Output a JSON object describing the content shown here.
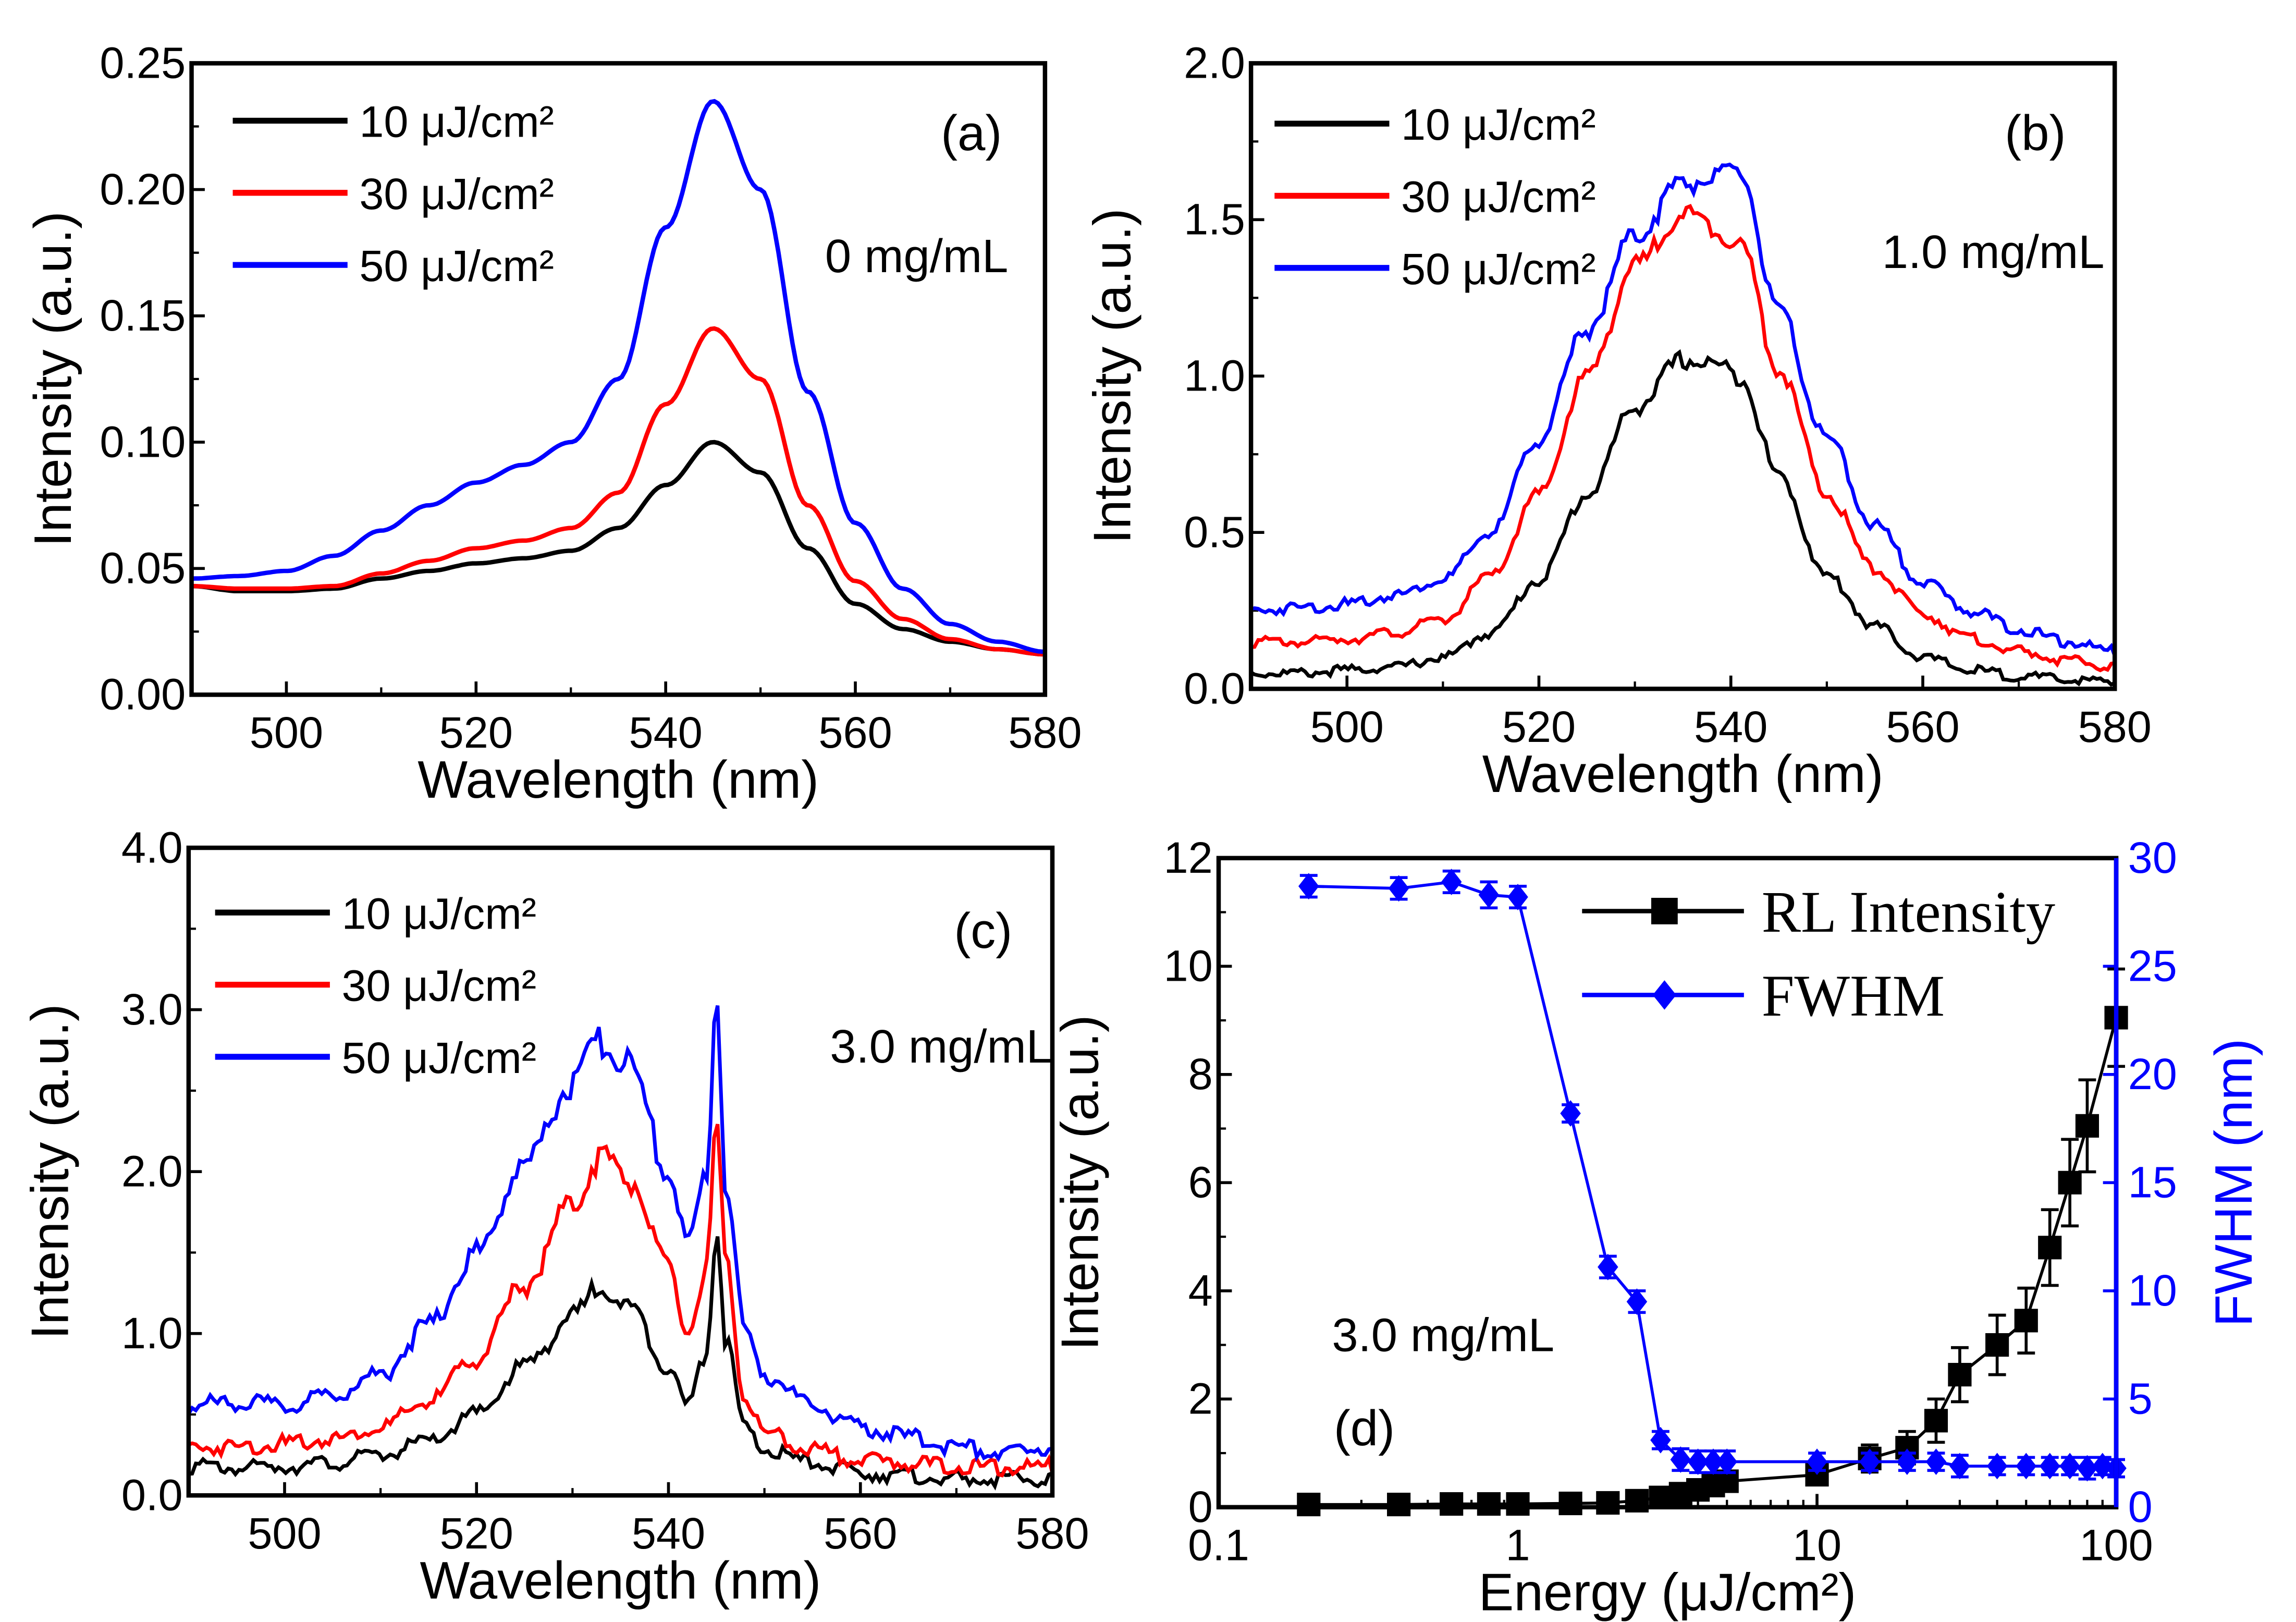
{
  "chart_data": [
    {
      "panel": "(a)",
      "type": "line",
      "annotation": "0 mg/mL",
      "xlabel": "Wavelength (nm)",
      "ylabel": "Intensity (a.u.)",
      "xlim": [
        490,
        580
      ],
      "ylim": [
        0,
        0.25
      ],
      "xticks": [
        "500",
        "520",
        "540",
        "560",
        "580"
      ],
      "yticks": [
        "0.00",
        "0.05",
        "0.10",
        "0.15",
        "0.20",
        "0.25"
      ],
      "legend_position": "top-left",
      "x": [
        490,
        495,
        500,
        505,
        510,
        515,
        520,
        525,
        530,
        535,
        540,
        545,
        550,
        555,
        560,
        565,
        570,
        575,
        580
      ],
      "series": [
        {
          "name": "10 μJ/cm²",
          "color": "#000000",
          "values": [
            0.043,
            0.041,
            0.041,
            0.042,
            0.046,
            0.049,
            0.052,
            0.054,
            0.057,
            0.066,
            0.083,
            0.1,
            0.088,
            0.058,
            0.036,
            0.026,
            0.021,
            0.018,
            0.016
          ]
        },
        {
          "name": "30 μJ/cm²",
          "color": "#ff0000",
          "values": [
            0.043,
            0.042,
            0.042,
            0.043,
            0.048,
            0.053,
            0.058,
            0.061,
            0.066,
            0.08,
            0.115,
            0.145,
            0.125,
            0.075,
            0.045,
            0.03,
            0.022,
            0.018,
            0.016
          ]
        },
        {
          "name": "50 μJ/cm²",
          "color": "#0000ff",
          "values": [
            0.046,
            0.047,
            0.049,
            0.055,
            0.065,
            0.075,
            0.084,
            0.091,
            0.1,
            0.125,
            0.185,
            0.235,
            0.2,
            0.12,
            0.068,
            0.042,
            0.028,
            0.021,
            0.017
          ]
        }
      ]
    },
    {
      "panel": "(b)",
      "type": "line",
      "annotation": "1.0 mg/mL",
      "xlabel": "Wavelength (nm)",
      "ylabel": "Intensity (a.u.)",
      "xlim": [
        490,
        580
      ],
      "ylim": [
        0,
        2.0
      ],
      "xticks": [
        "500",
        "520",
        "540",
        "560",
        "580"
      ],
      "yticks": [
        "0.0",
        "0.5",
        "1.0",
        "1.5",
        "2.0"
      ],
      "legend_position": "top-left",
      "x": [
        490,
        495,
        500,
        505,
        510,
        515,
        520,
        525,
        530,
        535,
        538,
        541,
        545,
        550,
        555,
        560,
        565,
        570,
        575,
        580
      ],
      "series": [
        {
          "name": "10 μJ/cm²",
          "color": "#000000",
          "values": [
            0.05,
            0.05,
            0.06,
            0.07,
            0.1,
            0.18,
            0.35,
            0.62,
            0.9,
            1.05,
            1.04,
            1.0,
            0.68,
            0.36,
            0.2,
            0.1,
            0.06,
            0.04,
            0.03,
            0.02
          ]
        },
        {
          "name": "30 μJ/cm²",
          "color": "#ff0000",
          "values": [
            0.15,
            0.15,
            0.16,
            0.18,
            0.22,
            0.36,
            0.62,
            1.0,
            1.35,
            1.52,
            1.48,
            1.42,
            1.02,
            0.62,
            0.38,
            0.24,
            0.16,
            0.12,
            0.09,
            0.07
          ]
        },
        {
          "name": "50 μJ/cm²",
          "color": "#0000ff",
          "values": [
            0.25,
            0.26,
            0.27,
            0.3,
            0.35,
            0.5,
            0.8,
            1.15,
            1.45,
            1.62,
            1.63,
            1.65,
            1.2,
            0.8,
            0.52,
            0.34,
            0.25,
            0.19,
            0.15,
            0.12
          ]
        }
      ]
    },
    {
      "panel": "(c)",
      "type": "line",
      "annotation": "3.0 mg/mL",
      "xlabel": "Wavelength (nm)",
      "ylabel": "Intensity (a.u.)",
      "xlim": [
        490,
        580
      ],
      "ylim": [
        0,
        4.0
      ],
      "xticks": [
        "500",
        "520",
        "540",
        "560",
        "580"
      ],
      "yticks": [
        "0.0",
        "1.0",
        "2.0",
        "3.0",
        "4.0"
      ],
      "legend_position": "top-left",
      "x": [
        490,
        495,
        500,
        505,
        510,
        515,
        520,
        525,
        530,
        533,
        536,
        540,
        542,
        544,
        545,
        546,
        548,
        550,
        555,
        560,
        565,
        570,
        575,
        580
      ],
      "series": [
        {
          "name": "10 μJ/cm²",
          "color": "#000000",
          "values": [
            0.18,
            0.17,
            0.18,
            0.2,
            0.25,
            0.33,
            0.5,
            0.8,
            1.1,
            1.3,
            1.15,
            0.8,
            0.55,
            0.9,
            1.65,
            0.95,
            0.4,
            0.28,
            0.2,
            0.14,
            0.12,
            0.1,
            0.1,
            0.1
          ]
        },
        {
          "name": "30 μJ/cm²",
          "color": "#ff0000",
          "values": [
            0.3,
            0.3,
            0.32,
            0.35,
            0.42,
            0.58,
            0.85,
            1.3,
            1.8,
            2.1,
            1.95,
            1.4,
            1.0,
            1.4,
            2.25,
            1.4,
            0.6,
            0.38,
            0.28,
            0.22,
            0.2,
            0.18,
            0.17,
            0.18
          ]
        },
        {
          "name": "50 μJ/cm²",
          "color": "#0000ff",
          "values": [
            0.55,
            0.58,
            0.55,
            0.62,
            0.75,
            1.05,
            1.5,
            2.05,
            2.55,
            2.8,
            2.65,
            2.0,
            1.55,
            2.0,
            3.1,
            1.9,
            1.0,
            0.75,
            0.55,
            0.42,
            0.36,
            0.3,
            0.26,
            0.3
          ]
        }
      ]
    },
    {
      "panel": "(d)",
      "type": "line",
      "annotation": "3.0 mg/mL",
      "xlabel": "Energy (μJ/cm²)",
      "ylabel": "Intensity (a.u.)",
      "ylabel_right": "FWHM (nm)",
      "xscale": "log",
      "xlim": [
        0.1,
        100
      ],
      "ylim": [
        0,
        12
      ],
      "ylim_right": [
        0,
        30
      ],
      "xticks": [
        "0.1",
        "1",
        "10",
        "100"
      ],
      "yticks": [
        "0",
        "2",
        "4",
        "6",
        "8",
        "10",
        "12"
      ],
      "yticks_right": [
        "0",
        "5",
        "10",
        "15",
        "20",
        "25",
        "30"
      ],
      "legend_position": "top-right",
      "series": [
        {
          "name": "RL Intensity",
          "color": "#000000",
          "marker": "square",
          "axis": "left",
          "x": [
            0.2,
            0.4,
            0.6,
            0.8,
            1.0,
            1.5,
            2.0,
            2.5,
            3.0,
            3.5,
            4.0,
            4.5,
            5.0,
            10,
            15,
            20,
            25,
            30,
            40,
            50,
            60,
            70,
            80,
            100
          ],
          "values": [
            0.05,
            0.05,
            0.06,
            0.06,
            0.06,
            0.07,
            0.08,
            0.12,
            0.18,
            0.25,
            0.32,
            0.4,
            0.48,
            0.6,
            0.9,
            1.1,
            1.6,
            2.45,
            3.0,
            3.45,
            4.8,
            6.0,
            7.05,
            9.05
          ],
          "errors": [
            0.02,
            0.02,
            0.02,
            0.02,
            0.02,
            0.02,
            0.02,
            0.03,
            0.03,
            0.05,
            0.05,
            0.06,
            0.08,
            0.15,
            0.25,
            0.3,
            0.4,
            0.5,
            0.55,
            0.6,
            0.7,
            0.8,
            0.85,
            0.9
          ]
        },
        {
          "name": "FWHM",
          "color": "#0000ff",
          "marker": "diamond",
          "axis": "right",
          "x": [
            0.2,
            0.4,
            0.6,
            0.8,
            1.0,
            1.5,
            2.0,
            2.5,
            3.0,
            3.5,
            4.0,
            4.5,
            5.0,
            10,
            15,
            20,
            25,
            30,
            40,
            50,
            60,
            70,
            80,
            90,
            100
          ],
          "values": [
            28.7,
            28.6,
            28.9,
            28.3,
            28.2,
            18.2,
            11.1,
            9.5,
            3.1,
            2.2,
            2.1,
            2.1,
            2.1,
            2.1,
            2.1,
            2.1,
            2.1,
            1.9,
            1.9,
            1.9,
            1.9,
            1.9,
            1.8,
            1.9,
            1.8
          ],
          "errors": [
            0.5,
            0.5,
            0.5,
            0.6,
            0.5,
            0.4,
            0.5,
            0.5,
            0.4,
            0.5,
            0.5,
            0.5,
            0.5,
            0.4,
            0.4,
            0.4,
            0.4,
            0.5,
            0.4,
            0.4,
            0.4,
            0.4,
            0.5,
            0.4,
            0.4
          ]
        }
      ]
    }
  ]
}
